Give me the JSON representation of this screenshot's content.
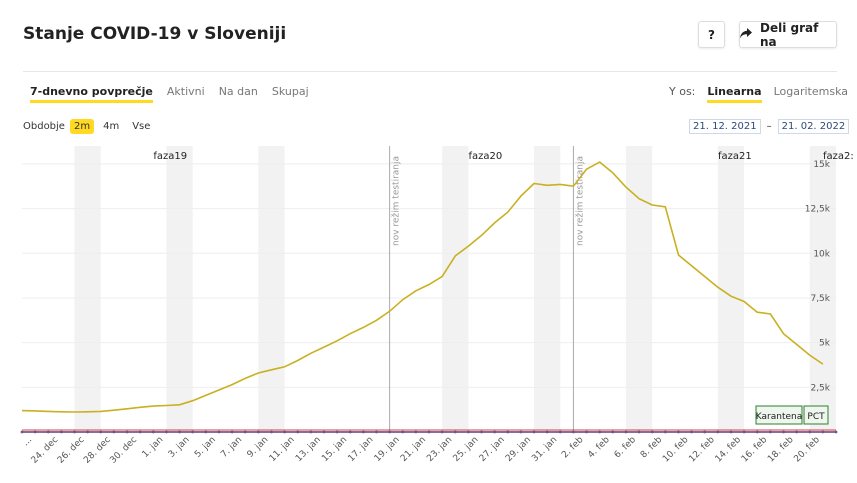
{
  "header": {
    "title": "Stanje COVID-19 v Sloveniji",
    "help_label": "?",
    "share_label": "Deli graf na"
  },
  "tabs": {
    "items": [
      "7-dnevno povprečje",
      "Aktivni",
      "Na dan",
      "Skupaj"
    ],
    "active": "7-dnevno povprečje"
  },
  "yaxis_selector": {
    "label": "Y os:",
    "options": [
      "Linearna",
      "Logaritemska"
    ],
    "active": "Linearna"
  },
  "period": {
    "label": "Obdobje",
    "options": [
      "2m",
      "4m",
      "Vse"
    ],
    "active": "2m"
  },
  "date_range": {
    "from": "21. 12. 2021",
    "separator": "–",
    "to": "21. 02. 2022"
  },
  "colors": {
    "accent": "#ffd922",
    "line": "#c9b020",
    "phase_line": "#aaaaaa",
    "band": "#f2f2f2"
  },
  "chart_data": {
    "type": "line",
    "x_tick_labels": [
      "...",
      "24. dec",
      "26. dec",
      "28. dec",
      "30. dec",
      "1. jan",
      "3. jan",
      "5. jan",
      "7. jan",
      "9. jan",
      "11. jan",
      "13. jan",
      "15. jan",
      "17. jan",
      "19. jan",
      "21. jan",
      "23. jan",
      "25. jan",
      "27. jan",
      "29. jan",
      "31. jan",
      "2. feb",
      "4. feb",
      "6. feb",
      "8. feb",
      "10. feb",
      "12. feb",
      "14. feb",
      "16. feb",
      "18. feb",
      "20. feb"
    ],
    "y_tick_labels": [
      "2,5k",
      "5k",
      "7,5k",
      "10k",
      "12,5k",
      "15k"
    ],
    "y_ticks": [
      2500,
      5000,
      7500,
      10000,
      12500,
      15000
    ],
    "ylim": [
      0,
      16000
    ],
    "xlim": [
      "2021-12-21",
      "2022-02-21"
    ],
    "phases": [
      {
        "label": "faza19",
        "date": "2022-01-01"
      },
      {
        "label": "faza20",
        "date": "2022-01-25"
      },
      {
        "label": "faza21",
        "date": "2022-02-13"
      },
      {
        "label": "faza2:",
        "date": "2022-02-21"
      }
    ],
    "vertical_markers": [
      {
        "label": "nov režim testiranja",
        "date": "2022-01-18"
      },
      {
        "label": "nov režim testiranja",
        "date": "2022-02-01"
      }
    ],
    "weekend_bands": [
      [
        "2021-12-25",
        "2021-12-26"
      ],
      [
        "2022-01-01",
        "2022-01-02"
      ],
      [
        "2022-01-08",
        "2022-01-09"
      ],
      [
        "2022-01-22",
        "2022-01-23"
      ],
      [
        "2022-01-29",
        "2022-01-30"
      ],
      [
        "2022-02-05",
        "2022-02-06"
      ],
      [
        "2022-02-12",
        "2022-02-13"
      ],
      [
        "2022-02-19",
        "2022-02-20"
      ]
    ],
    "event_labels": [
      "Karantena",
      "PCT"
    ],
    "series": [
      {
        "x": [
          "2021-12-21",
          "2021-12-22",
          "2021-12-23",
          "2021-12-24",
          "2021-12-25",
          "2021-12-26",
          "2021-12-27",
          "2021-12-28",
          "2021-12-29",
          "2021-12-30",
          "2021-12-31",
          "2022-01-01",
          "2022-01-02",
          "2022-01-03",
          "2022-01-04",
          "2022-01-05",
          "2022-01-06",
          "2022-01-07",
          "2022-01-08",
          "2022-01-09",
          "2022-01-10",
          "2022-01-11",
          "2022-01-12",
          "2022-01-13",
          "2022-01-14",
          "2022-01-15",
          "2022-01-16",
          "2022-01-17",
          "2022-01-18",
          "2022-01-19",
          "2022-01-20",
          "2022-01-21",
          "2022-01-22",
          "2022-01-23",
          "2022-01-24",
          "2022-01-25",
          "2022-01-26",
          "2022-01-27",
          "2022-01-28",
          "2022-01-29",
          "2022-01-30",
          "2022-01-31",
          "2022-02-01",
          "2022-02-02",
          "2022-02-03",
          "2022-02-04",
          "2022-02-05",
          "2022-02-06",
          "2022-02-07",
          "2022-02-08",
          "2022-02-09",
          "2022-02-10",
          "2022-02-11",
          "2022-02-12",
          "2022-02-13",
          "2022-02-14",
          "2022-02-15",
          "2022-02-16",
          "2022-02-17",
          "2022-02-18",
          "2022-02-19",
          "2022-02-20"
        ],
        "values": [
          1200,
          1180,
          1150,
          1130,
          1120,
          1130,
          1150,
          1220,
          1300,
          1380,
          1450,
          1480,
          1520,
          1750,
          2050,
          2350,
          2650,
          3000,
          3300,
          3480,
          3650,
          4000,
          4400,
          4750,
          5100,
          5500,
          5850,
          6250,
          6750,
          7400,
          7900,
          8250,
          8700,
          9850,
          10400,
          11000,
          11700,
          12300,
          13200,
          13900,
          13800,
          13850,
          13750,
          14700,
          15100,
          14500,
          13700,
          13050,
          12700,
          12600,
          9900,
          9300,
          8700,
          8100,
          7600,
          7300,
          6700,
          6600,
          5500,
          4900,
          4300,
          3800
        ]
      }
    ]
  }
}
